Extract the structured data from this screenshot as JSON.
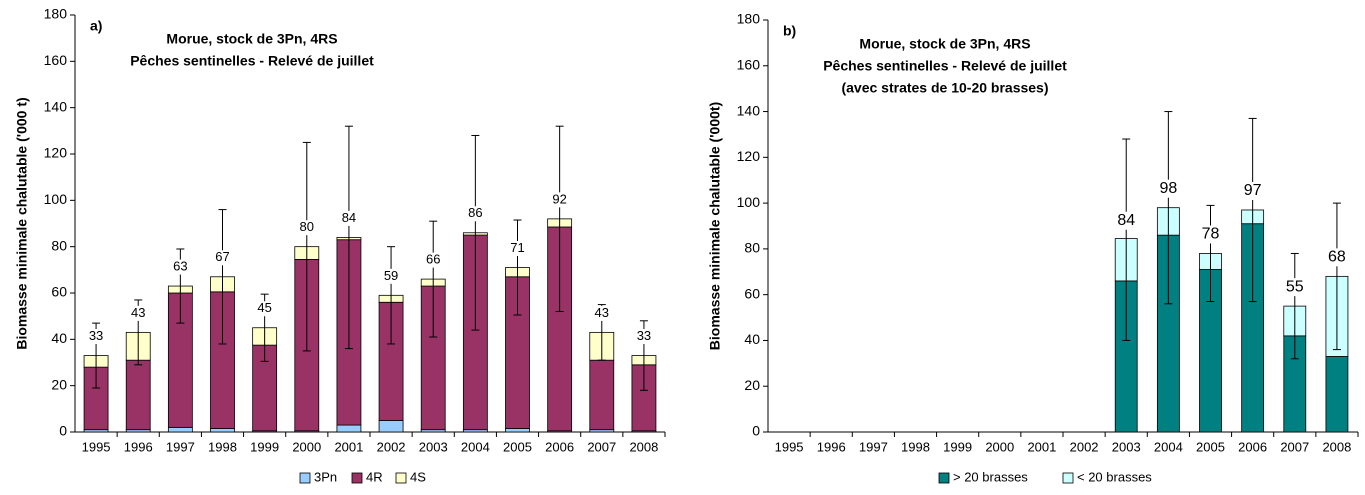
{
  "chart_data": [
    {
      "type": "stacked_bar",
      "panel_label": "a)",
      "title": [
        "Morue, stock de 3Pn, 4RS",
        "Pêches sentinelles - Relevé de juillet"
      ],
      "y_label": "Biomasse minimale chalutable ('000 t)",
      "categories": [
        "1995",
        "1996",
        "1997",
        "1998",
        "1999",
        "2000",
        "2001",
        "2002",
        "2003",
        "2004",
        "2005",
        "2006",
        "2007",
        "2008"
      ],
      "series": [
        {
          "name": "3Pn",
          "color": "#99ccff",
          "values": [
            1,
            1,
            2,
            1.5,
            0.5,
            0.5,
            3,
            5,
            1,
            1,
            1.5,
            0.5,
            1,
            0.5
          ]
        },
        {
          "name": "4R",
          "color": "#993366",
          "values": [
            27,
            30,
            58,
            59,
            37,
            74,
            80,
            51,
            62,
            84,
            65.5,
            88,
            30,
            28.5
          ]
        },
        {
          "name": "4S",
          "color": "#ffffcc",
          "values": [
            5,
            12,
            3,
            6.5,
            7.5,
            5.5,
            1,
            3,
            3,
            1,
            4,
            3.5,
            12,
            4
          ]
        }
      ],
      "totals": [
        33,
        43,
        63,
        67,
        45,
        80,
        84,
        59,
        66,
        86,
        71,
        92,
        43,
        33
      ],
      "errors": [
        14,
        14,
        16,
        29,
        14.5,
        45,
        48,
        21,
        25,
        42,
        20.5,
        40,
        12,
        15
      ],
      "ylim": [
        0,
        180
      ],
      "yticks": [
        0,
        20,
        40,
        60,
        80,
        100,
        120,
        140,
        160,
        180
      ],
      "legend": "bottom"
    },
    {
      "type": "stacked_bar",
      "panel_label": "b)",
      "title": [
        "Morue, stock de 3Pn, 4RS",
        "Pêches sentinelles - Relevé de juillet",
        "(avec strates de 10-20 brasses)"
      ],
      "y_label": "Biomasse minimale chalutable ('000t)",
      "categories": [
        "1995",
        "1996",
        "1997",
        "1998",
        "1999",
        "2000",
        "2001",
        "2002",
        "2003",
        "2004",
        "2005",
        "2006",
        "2007",
        "2008"
      ],
      "series": [
        {
          "name": "> 20 brasses",
          "color": "#008080",
          "values": [
            null,
            null,
            null,
            null,
            null,
            null,
            null,
            null,
            66,
            86,
            71,
            91,
            42,
            33
          ]
        },
        {
          "name": "< 20 brasses",
          "color": "#ccffff",
          "values": [
            null,
            null,
            null,
            null,
            null,
            null,
            null,
            null,
            18.5,
            12,
            7,
            6,
            13,
            35
          ]
        }
      ],
      "totals": [
        null,
        null,
        null,
        null,
        null,
        null,
        null,
        null,
        84,
        98,
        78,
        97,
        55,
        68
      ],
      "errors": [
        null,
        null,
        null,
        null,
        null,
        null,
        null,
        null,
        44,
        42,
        21,
        40,
        23,
        32
      ],
      "ylim": [
        0,
        180
      ],
      "yticks": [
        0,
        20,
        40,
        60,
        80,
        100,
        120,
        140,
        160,
        180
      ],
      "legend": "bottom"
    }
  ]
}
